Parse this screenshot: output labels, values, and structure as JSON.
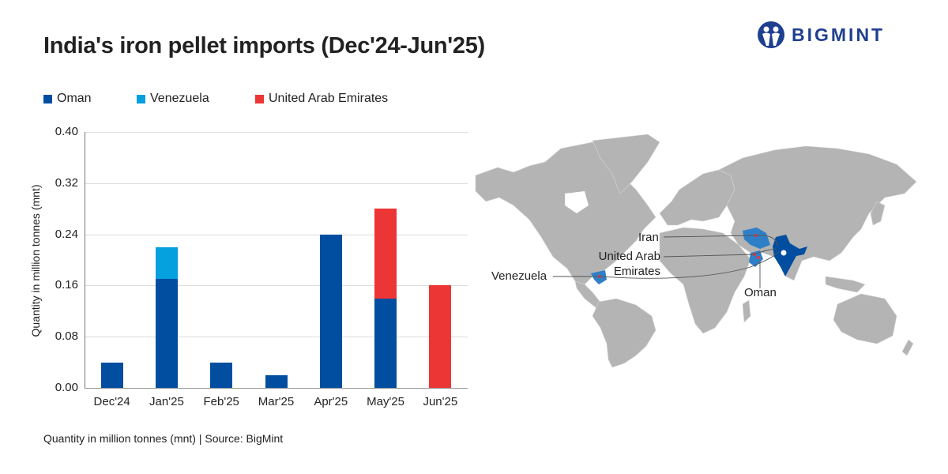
{
  "header": {
    "title": "India's iron pellet imports (Dec'24-Jun'25)",
    "logo_text": "BIGMINT",
    "logo_color": "#1f3f8f"
  },
  "legend": [
    {
      "label": "Oman",
      "color": "#014ea0"
    },
    {
      "label": "Venezuela",
      "color": "#05a0de"
    },
    {
      "label": "United Arab Emirates",
      "color": "#ec3535"
    }
  ],
  "footer": {
    "text": "Quantity in million tonnes (mnt) | Source: BigMint"
  },
  "map": {
    "labels": {
      "iran": "Iran",
      "uae_line1": "United Arab",
      "uae_line2": "Emirates",
      "venezuela": "Venezuela",
      "oman": "Oman"
    },
    "colors": {
      "land": "#b4b4b4",
      "india": "#014ea0",
      "source_country": "#2f7fc7",
      "origin_dot": "#ec3535"
    }
  },
  "chart_data": {
    "type": "bar",
    "stacked": true,
    "title": "India's iron pellet imports (Dec'24-Jun'25)",
    "xlabel": "",
    "ylabel": "Quantity in million tonnes (mnt)",
    "ylim": [
      0,
      0.4
    ],
    "yticks": [
      "0.00",
      "0.08",
      "0.16",
      "0.24",
      "0.32",
      "0.40"
    ],
    "grid": true,
    "legend_position": "top-left",
    "categories": [
      "Dec'24",
      "Jan'25",
      "Feb'25",
      "Mar'25",
      "Apr'25",
      "May'25",
      "Jun'25"
    ],
    "series": [
      {
        "name": "Oman",
        "color": "#014ea0",
        "values": [
          0.04,
          0.17,
          0.04,
          0.02,
          0.24,
          0.14,
          0
        ]
      },
      {
        "name": "Venezuela",
        "color": "#05a0de",
        "values": [
          0,
          0.05,
          0,
          0,
          0,
          0,
          0
        ]
      },
      {
        "name": "United Arab Emirates",
        "color": "#ec3535",
        "values": [
          0,
          0,
          0,
          0,
          0,
          0.14,
          0.16
        ]
      }
    ]
  }
}
